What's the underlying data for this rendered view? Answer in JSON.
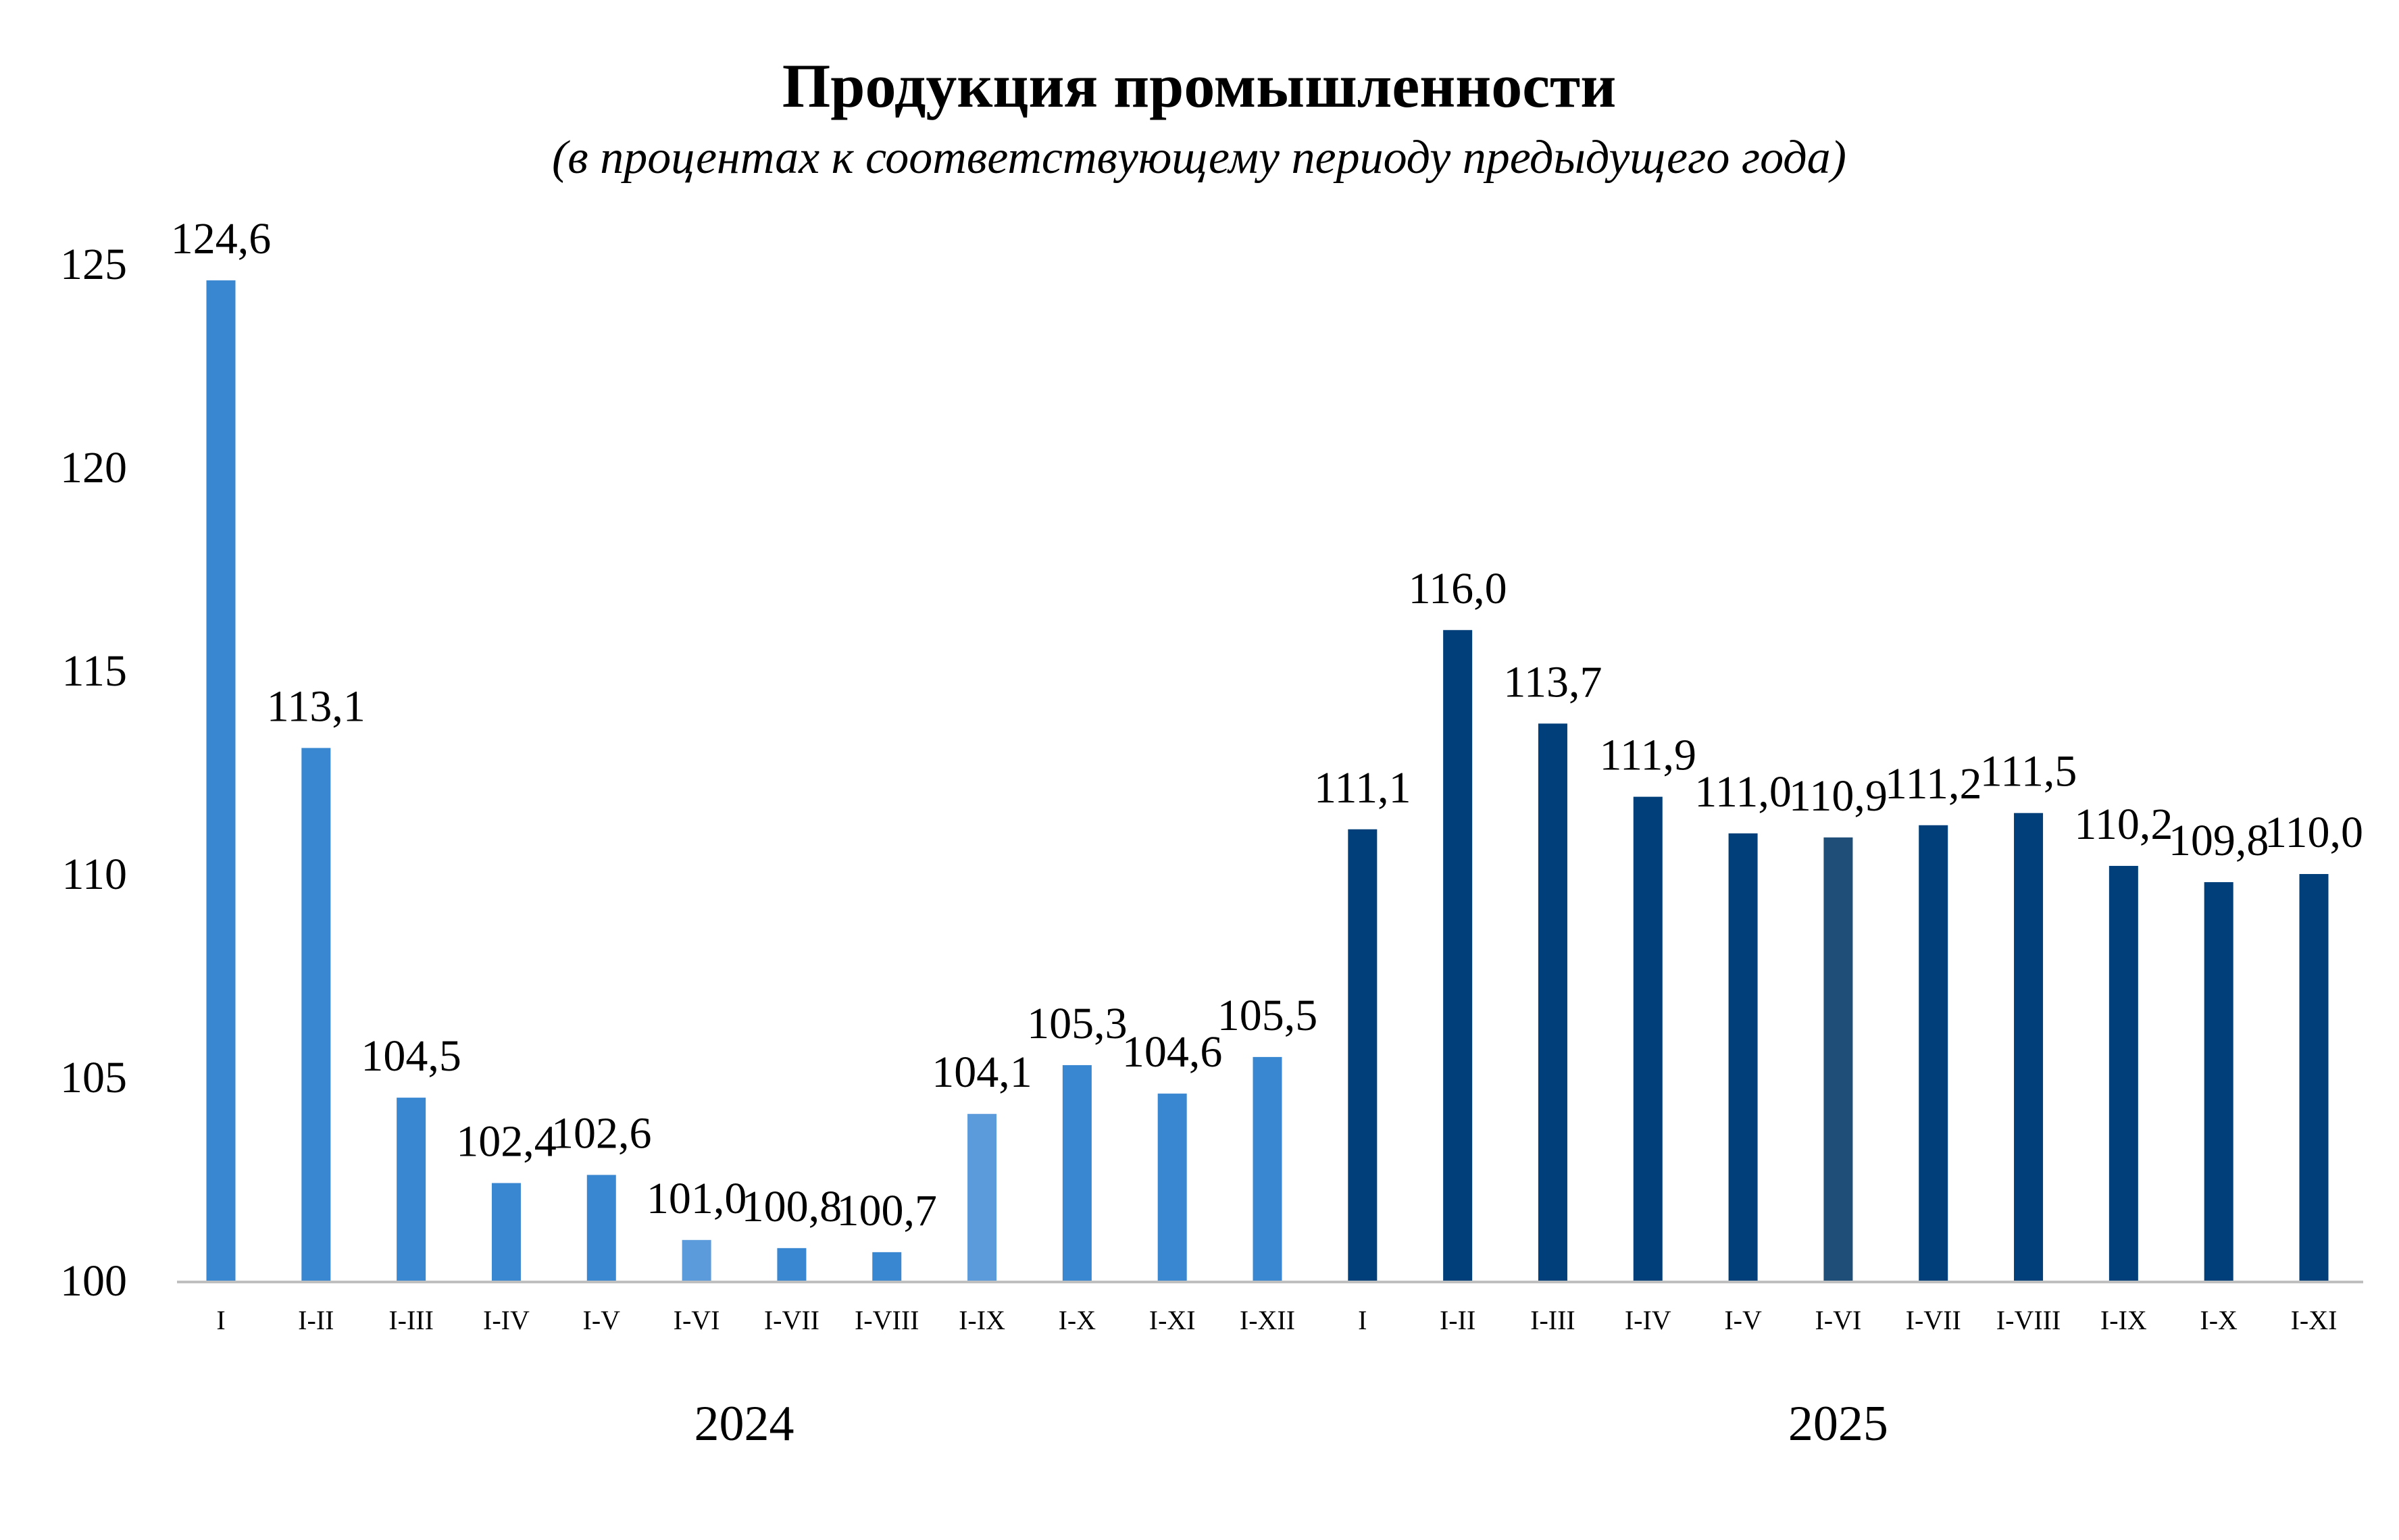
{
  "chart_data": {
    "type": "bar",
    "title": "Продукция промышленности",
    "subtitle": "(в процентах к соответствующему периоду предыдущего года)",
    "xlabel": "",
    "ylabel": "",
    "ylim": [
      100,
      125
    ],
    "yticks": [
      "100",
      "105",
      "110",
      "115",
      "120",
      "125"
    ],
    "grid": false,
    "legend": "none",
    "categories": [
      "I",
      "I-II",
      "I-III",
      "I-IV",
      "I-V",
      "I-VI",
      "I-VII",
      "I-VIII",
      "I-IX",
      "I-X",
      "I-XI",
      "I-XII",
      "I",
      "I-II",
      "I-III",
      "I-IV",
      "I-V",
      "I-VI",
      "I-VII",
      "I-VIII",
      "I-IX",
      "I-X",
      "I-XI"
    ],
    "values": [
      124.6,
      113.1,
      104.5,
      102.4,
      102.6,
      101.0,
      100.8,
      100.7,
      104.1,
      105.3,
      104.6,
      105.5,
      111.1,
      116.0,
      113.7,
      111.9,
      111.0,
      110.9,
      111.2,
      111.5,
      110.2,
      109.8,
      110.0
    ],
    "data_labels": [
      "124,6",
      "113,1",
      "104,5",
      "102,4",
      "102,6",
      "101,0",
      "100,8",
      "100,7",
      "104,1",
      "105,3",
      "104,6",
      "105,5",
      "111,1",
      "116,0",
      "113,7",
      "111,9",
      "111,0",
      "110,9",
      "111,2",
      "111,5",
      "110,2",
      "109,8",
      "110,0"
    ],
    "groups": [
      {
        "label": "2024",
        "start": 0,
        "end": 11
      },
      {
        "label": "2025",
        "start": 12,
        "end": 22
      }
    ],
    "colors": [
      "#3a87d1",
      "#3a87d1",
      "#3a87d1",
      "#3a87d1",
      "#3a87d1",
      "#5b9bdb",
      "#3a87d1",
      "#3a87d1",
      "#5b9bdb",
      "#3a87d1",
      "#3a87d1",
      "#3a87d1",
      "#003f7a",
      "#003f7a",
      "#003f7a",
      "#003f7a",
      "#003f7a",
      "#1f4e79",
      "#003f7a",
      "#003f7a",
      "#003f7a",
      "#003f7a",
      "#003f7a"
    ],
    "axis_color": "#bfbfbf"
  }
}
